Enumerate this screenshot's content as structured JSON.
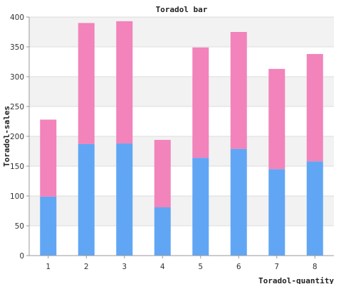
{
  "chart_data": {
    "type": "bar",
    "stacked": true,
    "title": "Toradol bar",
    "xlabel": "Toradol-quantity",
    "ylabel": "Toradol-sales",
    "categories": [
      "1",
      "2",
      "3",
      "4",
      "5",
      "6",
      "7",
      "8"
    ],
    "ylim": [
      0,
      400
    ],
    "yticks": [
      0,
      50,
      100,
      150,
      200,
      250,
      300,
      350,
      400
    ],
    "series": [
      {
        "color": "#61a6f4",
        "values": [
          99,
          187,
          188,
          81,
          164,
          179,
          145,
          158
        ]
      },
      {
        "color": "#f283bb",
        "values": [
          129,
          203,
          205,
          113,
          185,
          196,
          168,
          180
        ]
      }
    ],
    "grid": true,
    "legend": "none",
    "band_colors": [
      "#ffffff",
      "#f2f2f2"
    ]
  }
}
